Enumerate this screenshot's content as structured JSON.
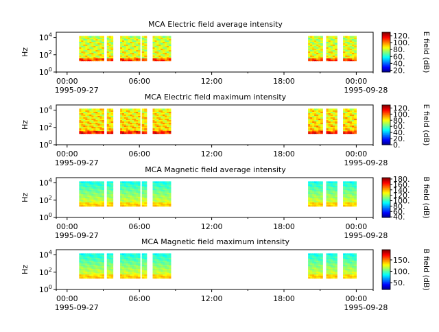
{
  "chart_data": [
    {
      "type": "heatmap",
      "title": "MCA  Electric field average intensity",
      "ylabel": "Hz",
      "y_scale": "log",
      "ylim": [
        1,
        40000
      ],
      "y_ticks": [
        {
          "base": "10",
          "exp": "0"
        },
        {
          "base": "10",
          "exp": "2"
        },
        {
          "base": "10",
          "exp": "4"
        }
      ],
      "x_ticks": [
        "00:00",
        "06:00",
        "12:00",
        "18:00",
        "00:00"
      ],
      "x_dates": [
        "1995-09-27",
        "1995-09-28"
      ],
      "colorbar": {
        "label": "E field (dB)",
        "range": [
          15,
          130
        ],
        "ticks": [
          "20.",
          "40.",
          "60.",
          "80.",
          "100.",
          "120."
        ],
        "tick_values": [
          20,
          40,
          60,
          80,
          100,
          120
        ]
      },
      "data_intervals_hours": [
        [
          1.0,
          3.05
        ],
        [
          3.3,
          3.8
        ],
        [
          4.4,
          6.05
        ],
        [
          6.2,
          6.6
        ],
        [
          7.1,
          8.6
        ],
        [
          20.0,
          21.2
        ],
        [
          21.5,
          22.4
        ],
        [
          22.9,
          24.0
        ]
      ]
    },
    {
      "type": "heatmap",
      "title": "MCA  Electric field maximum intensity",
      "ylabel": "Hz",
      "y_scale": "log",
      "ylim": [
        1,
        40000
      ],
      "y_ticks": [
        {
          "base": "10",
          "exp": "0"
        },
        {
          "base": "10",
          "exp": "2"
        },
        {
          "base": "10",
          "exp": "4"
        }
      ],
      "x_ticks": [
        "00:00",
        "06:00",
        "12:00",
        "18:00",
        "00:00"
      ],
      "x_dates": [
        "1995-09-27",
        "1995-09-28"
      ],
      "colorbar": {
        "label": "E field (dB)",
        "range": [
          0,
          130
        ],
        "ticks": [
          "0.",
          "20.",
          "40.",
          "60.",
          "80.",
          "100.",
          "120."
        ],
        "tick_values": [
          0,
          20,
          40,
          60,
          80,
          100,
          120
        ]
      },
      "data_intervals_hours": [
        [
          1.0,
          3.05
        ],
        [
          3.3,
          3.8
        ],
        [
          4.4,
          6.05
        ],
        [
          6.2,
          6.6
        ],
        [
          7.1,
          8.6
        ],
        [
          20.0,
          21.2
        ],
        [
          21.5,
          22.4
        ],
        [
          22.9,
          24.0
        ]
      ]
    },
    {
      "type": "heatmap",
      "title": "MCA  Magnetic field average intensity",
      "ylabel": "Hz",
      "y_scale": "log",
      "ylim": [
        1,
        40000
      ],
      "y_ticks": [
        {
          "base": "10",
          "exp": "0"
        },
        {
          "base": "10",
          "exp": "2"
        },
        {
          "base": "10",
          "exp": "4"
        }
      ],
      "x_ticks": [
        "00:00",
        "06:00",
        "12:00",
        "18:00",
        "00:00"
      ],
      "x_dates": [
        "1995-09-27",
        "1995-09-28"
      ],
      "colorbar": {
        "label": "B field (dB)",
        "range": [
          38,
          185
        ],
        "ticks": [
          "40.",
          "60.",
          "80.",
          "100.",
          "120.",
          "140.",
          "160.",
          "180."
        ],
        "tick_values": [
          40,
          60,
          80,
          100,
          120,
          140,
          160,
          180
        ]
      },
      "data_intervals_hours": [
        [
          1.0,
          3.05
        ],
        [
          3.3,
          3.8
        ],
        [
          4.4,
          6.05
        ],
        [
          6.2,
          6.6
        ],
        [
          7.1,
          8.6
        ],
        [
          20.0,
          21.2
        ],
        [
          21.5,
          22.4
        ],
        [
          22.9,
          24.0
        ]
      ]
    },
    {
      "type": "heatmap",
      "title": "MCA  Magnetic field maximum intensity",
      "ylabel": "Hz",
      "y_scale": "log",
      "ylim": [
        1,
        40000
      ],
      "y_ticks": [
        {
          "base": "10",
          "exp": "0"
        },
        {
          "base": "10",
          "exp": "2"
        },
        {
          "base": "10",
          "exp": "4"
        }
      ],
      "x_ticks": [
        "00:00",
        "06:00",
        "12:00",
        "18:00",
        "00:00"
      ],
      "x_dates": [
        "1995-09-27",
        "1995-09-28"
      ],
      "colorbar": {
        "label": "B field (dB)",
        "range": [
          20,
          195
        ],
        "ticks": [
          "50.",
          "100.",
          "150."
        ],
        "tick_values": [
          50,
          100,
          150
        ]
      },
      "data_intervals_hours": [
        [
          1.0,
          3.05
        ],
        [
          3.3,
          3.8
        ],
        [
          4.4,
          6.05
        ],
        [
          6.2,
          6.6
        ],
        [
          7.1,
          8.6
        ],
        [
          20.0,
          21.2
        ],
        [
          21.5,
          22.4
        ],
        [
          22.9,
          24.0
        ]
      ]
    }
  ]
}
